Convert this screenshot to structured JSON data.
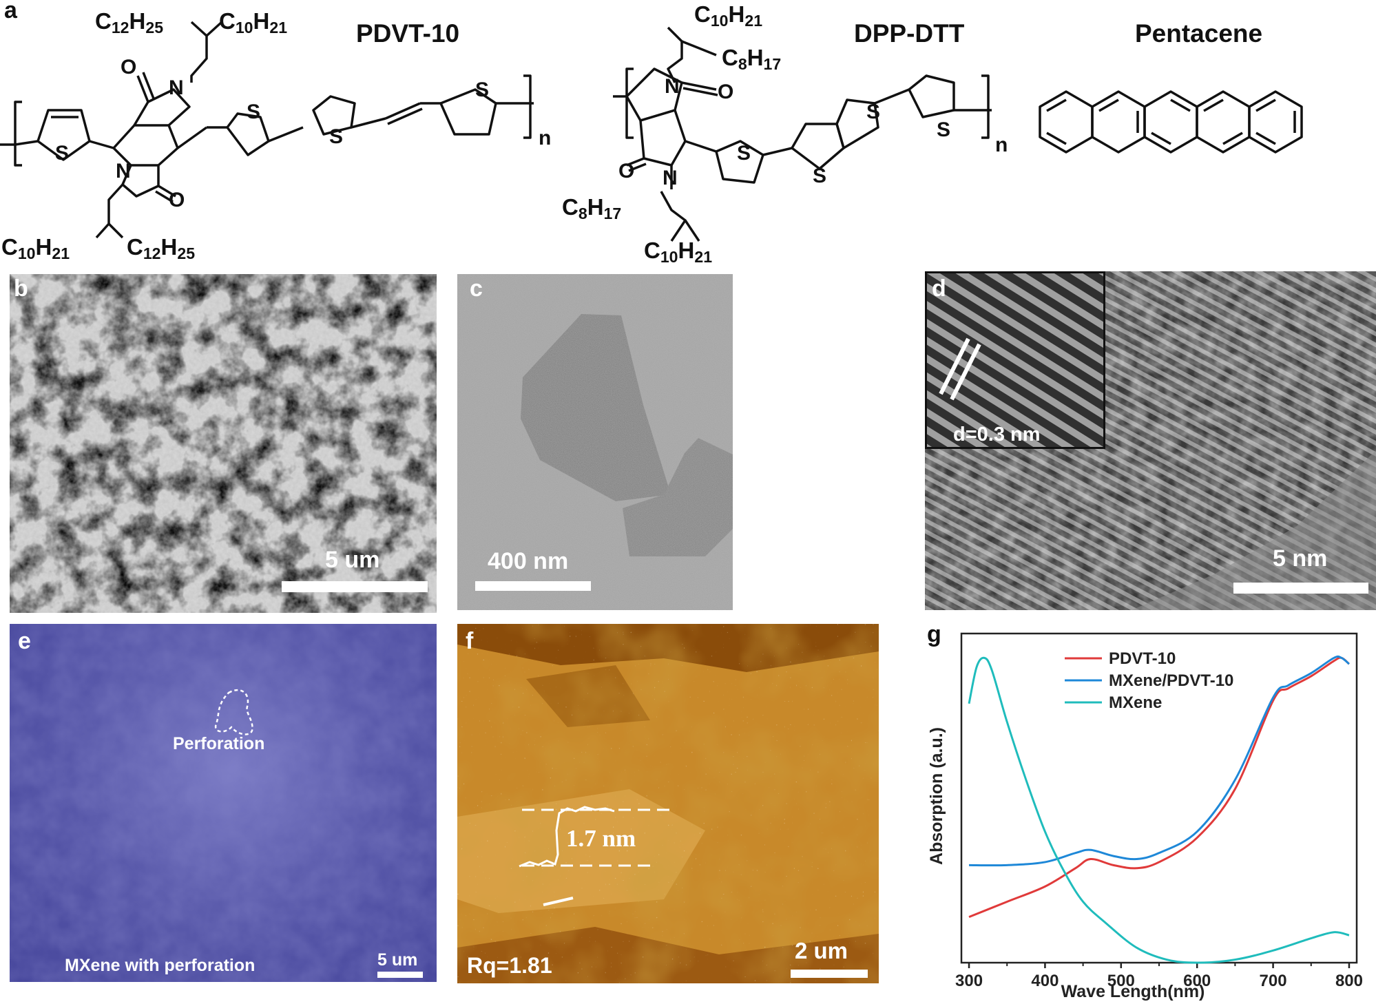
{
  "panel_letters": {
    "a": "a",
    "b": "b",
    "c": "c",
    "d": "d",
    "e": "e",
    "f": "f",
    "g": "g"
  },
  "structures": {
    "pdvt10": {
      "name": "PDVT-10",
      "top_left_chain": [
        "C",
        "12",
        "H",
        "25"
      ],
      "top_right_chain": [
        "C",
        "10",
        "H",
        "21"
      ],
      "bottom_left_chain": [
        "C",
        "10",
        "H",
        "21"
      ],
      "bottom_right_chain": [
        "C",
        "12",
        "H",
        "25"
      ],
      "repeat": "n"
    },
    "dppdtt": {
      "name": "DPP-DTT",
      "top_chain_a": [
        "C",
        "10",
        "H",
        "21"
      ],
      "top_chain_b": [
        "C",
        "8",
        "H",
        "17"
      ],
      "bottom_chain_a": [
        "C",
        "8",
        "H",
        "17"
      ],
      "bottom_chain_b": [
        "C",
        "10",
        "H",
        "21"
      ],
      "repeat": "n"
    },
    "pentacene": {
      "name": "Pentacene"
    },
    "atoms": {
      "s": "S",
      "n": "N",
      "o": "O"
    }
  },
  "panel_b": {
    "scale": "5 um"
  },
  "panel_c": {
    "scale": "400 nm"
  },
  "panel_d": {
    "inset_label": "d=0.3 nm",
    "scale": "5 nm"
  },
  "panel_e": {
    "annotation": "Perforation",
    "caption": "MXene with perforation",
    "scale": "5 um"
  },
  "panel_f": {
    "step_height": "1.7 nm",
    "roughness": "Rq=1.81",
    "scale": "2 um"
  },
  "chart_data": {
    "type": "line",
    "xlabel": "Wave Length(nm)",
    "ylabel": "Absorption (a.u.)",
    "xlim": [
      290,
      810
    ],
    "ylim": [
      0,
      1.08
    ],
    "xticks": [
      300,
      400,
      500,
      600,
      700,
      800
    ],
    "y_tick_labels": "none",
    "legend_position": "top",
    "series": [
      {
        "name": "PDVT-10",
        "color": "#e03a3a",
        "x": [
          300,
          350,
          400,
          440,
          460,
          490,
          520,
          550,
          600,
          650,
          700,
          720,
          750,
          780,
          790,
          800
        ],
        "y": [
          0.15,
          0.2,
          0.25,
          0.31,
          0.34,
          0.32,
          0.31,
          0.33,
          0.41,
          0.57,
          0.86,
          0.9,
          0.94,
          0.99,
          1.0,
          0.98
        ]
      },
      {
        "name": "MXene/PDVT-10",
        "color": "#1e88d8",
        "x": [
          300,
          350,
          400,
          440,
          460,
          490,
          520,
          550,
          600,
          650,
          700,
          720,
          750,
          780,
          790,
          800
        ],
        "y": [
          0.32,
          0.32,
          0.33,
          0.36,
          0.37,
          0.35,
          0.34,
          0.36,
          0.43,
          0.6,
          0.87,
          0.91,
          0.95,
          1.0,
          1.0,
          0.98
        ]
      },
      {
        "name": "MXene",
        "color": "#1fbcbc",
        "x": [
          300,
          310,
          320,
          330,
          350,
          375,
          400,
          425,
          450,
          480,
          520,
          560,
          600,
          650,
          700,
          750,
          780,
          800
        ],
        "y": [
          0.85,
          0.97,
          1.0,
          0.96,
          0.79,
          0.6,
          0.43,
          0.3,
          0.2,
          0.13,
          0.05,
          0.01,
          0.0,
          0.01,
          0.04,
          0.08,
          0.1,
          0.09
        ]
      }
    ]
  }
}
